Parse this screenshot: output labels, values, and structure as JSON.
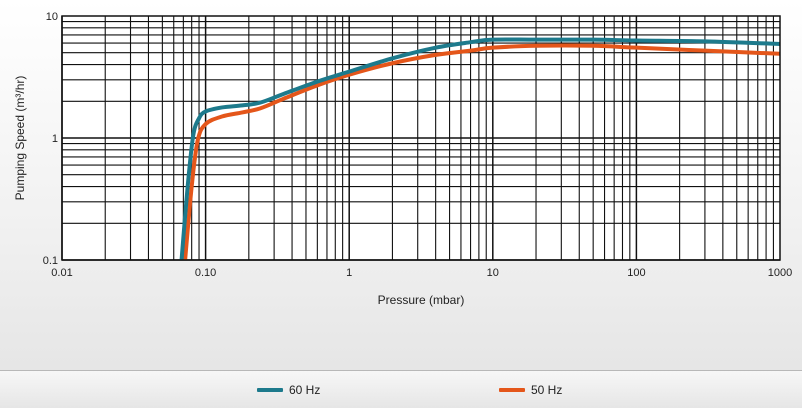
{
  "chart_data": {
    "type": "line",
    "xlabel": "Pressure (mbar)",
    "ylabel": "Pumping Speed (m³/hr)",
    "xscale": "log",
    "yscale": "log",
    "xlim": [
      0.01,
      1000
    ],
    "ylim": [
      0.1,
      10
    ],
    "grid": true,
    "legend_position": "bottom",
    "x_ticks": [
      {
        "value": 0.01,
        "label": "0.01"
      },
      {
        "value": 0.1,
        "label": "0.10"
      },
      {
        "value": 1,
        "label": "1"
      },
      {
        "value": 10,
        "label": "10"
      },
      {
        "value": 100,
        "label": "100"
      },
      {
        "value": 1000,
        "label": "1000"
      }
    ],
    "y_ticks": [
      {
        "value": 0.1,
        "label": "0.1"
      },
      {
        "value": 1,
        "label": "1"
      },
      {
        "value": 10,
        "label": "10"
      }
    ],
    "series": [
      {
        "name": "60 Hz",
        "color": "#1d7a8c",
        "points": [
          [
            0.068,
            0.1
          ],
          [
            0.075,
            0.4
          ],
          [
            0.082,
            1.05
          ],
          [
            0.09,
            1.45
          ],
          [
            0.1,
            1.65
          ],
          [
            0.13,
            1.78
          ],
          [
            0.18,
            1.85
          ],
          [
            0.24,
            1.95
          ],
          [
            0.35,
            2.3
          ],
          [
            0.6,
            2.9
          ],
          [
            1,
            3.5
          ],
          [
            2,
            4.5
          ],
          [
            4,
            5.5
          ],
          [
            7,
            6.1
          ],
          [
            10,
            6.4
          ],
          [
            20,
            6.4
          ],
          [
            50,
            6.4
          ],
          [
            100,
            6.3
          ],
          [
            300,
            6.2
          ],
          [
            1000,
            5.9
          ]
        ]
      },
      {
        "name": "50 Hz",
        "color": "#e4561a",
        "points": [
          [
            0.072,
            0.1
          ],
          [
            0.08,
            0.4
          ],
          [
            0.088,
            0.95
          ],
          [
            0.1,
            1.3
          ],
          [
            0.13,
            1.5
          ],
          [
            0.18,
            1.62
          ],
          [
            0.24,
            1.75
          ],
          [
            0.35,
            2.1
          ],
          [
            0.6,
            2.7
          ],
          [
            1,
            3.3
          ],
          [
            2,
            4.1
          ],
          [
            4,
            4.8
          ],
          [
            7,
            5.2
          ],
          [
            10,
            5.5
          ],
          [
            20,
            5.7
          ],
          [
            50,
            5.7
          ],
          [
            100,
            5.5
          ],
          [
            300,
            5.2
          ],
          [
            1000,
            4.9
          ]
        ]
      }
    ]
  }
}
